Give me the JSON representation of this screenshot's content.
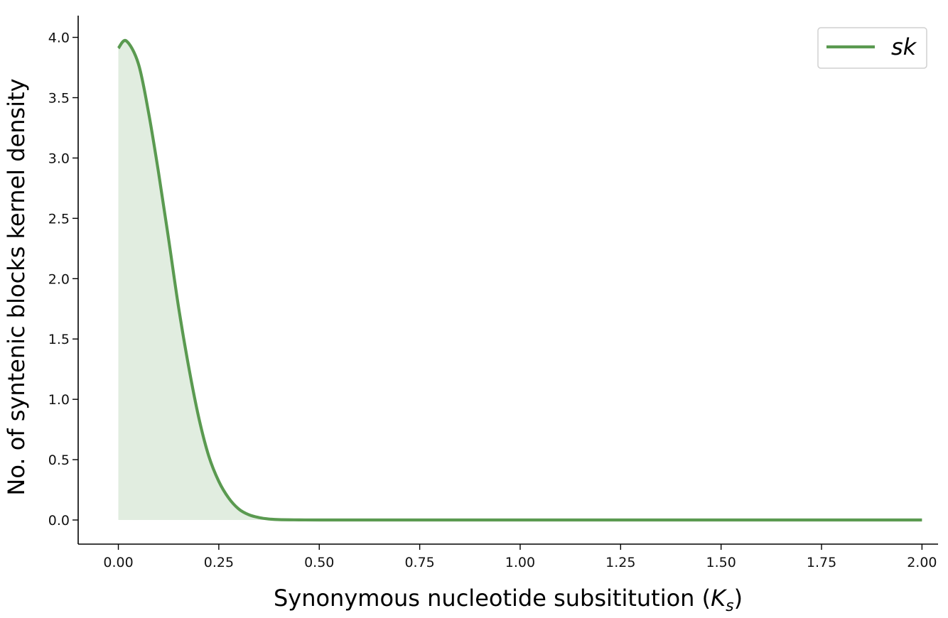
{
  "chart_data": {
    "type": "area",
    "xlabel": "Synonymous nucleotide subsititution (",
    "xlabel_symbol": "K",
    "xlabel_subscript": "s",
    "xlabel_suffix": ")",
    "ylabel": "No. of syntenic blocks kernel density",
    "xlim": [
      -0.1,
      2.04
    ],
    "ylim": [
      -0.2,
      4.18
    ],
    "x_ticks": [
      0.0,
      0.25,
      0.5,
      0.75,
      1.0,
      1.25,
      1.5,
      1.75,
      2.0
    ],
    "x_tick_labels": [
      "0.00",
      "0.25",
      "0.50",
      "0.75",
      "1.00",
      "1.25",
      "1.50",
      "1.75",
      "2.00"
    ],
    "y_ticks": [
      0.0,
      0.5,
      1.0,
      1.5,
      2.0,
      2.5,
      3.0,
      3.5,
      4.0
    ],
    "y_tick_labels": [
      "0.0",
      "0.5",
      "1.0",
      "1.5",
      "2.0",
      "2.5",
      "3.0",
      "3.5",
      "4.0"
    ],
    "grid": false,
    "legend_position": "top-right",
    "series": [
      {
        "name": "sk",
        "color": "#5a9a50",
        "fill_color": "#e1ede0",
        "x": [
          0.0,
          0.02,
          0.05,
          0.075,
          0.1,
          0.125,
          0.15,
          0.175,
          0.2,
          0.225,
          0.25,
          0.275,
          0.3,
          0.325,
          0.35,
          0.375,
          0.4,
          0.45,
          0.5,
          0.6,
          0.75,
          1.0,
          1.25,
          1.5,
          1.75,
          2.0
        ],
        "y": [
          3.91,
          3.97,
          3.78,
          3.38,
          2.88,
          2.33,
          1.76,
          1.27,
          0.85,
          0.53,
          0.32,
          0.18,
          0.09,
          0.043,
          0.02,
          0.008,
          0.003,
          0.001,
          0.0,
          0.0,
          0.0,
          0.0,
          0.0,
          0.0,
          0.0,
          0.0
        ]
      }
    ]
  }
}
